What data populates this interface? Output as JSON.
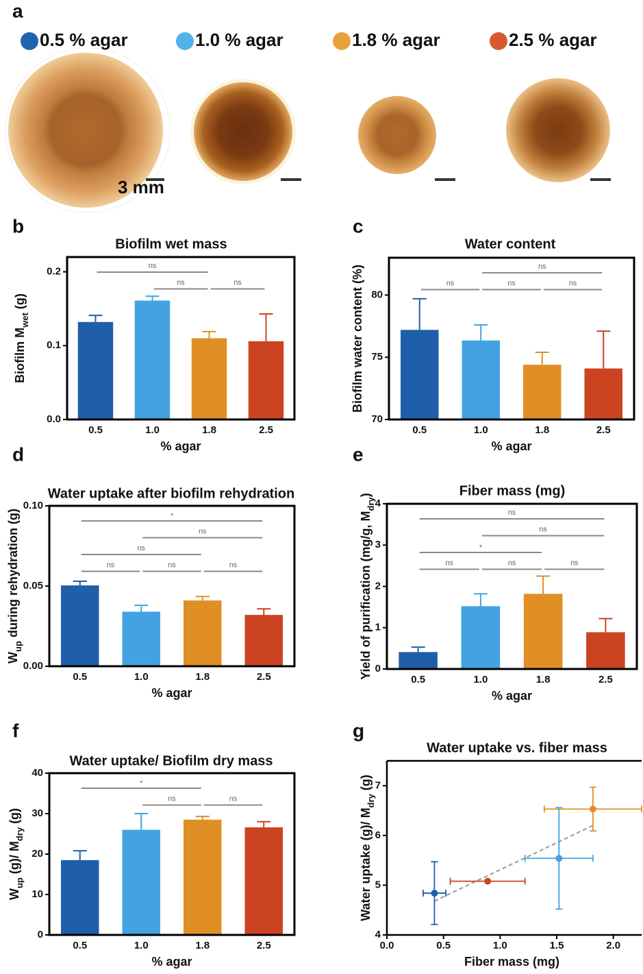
{
  "figure_a": {
    "panel": "a",
    "legend": [
      {
        "name": "0.5 % agar",
        "color": "#1f63b0"
      },
      {
        "name": "1.0 % agar",
        "color": "#52b3ea"
      },
      {
        "name": "1.8 % agar",
        "color": "#e9a23b"
      },
      {
        "name": "2.5 % agar",
        "color": "#d9592e"
      }
    ],
    "scale_label": "3 mm"
  },
  "chart_data": [
    {
      "panel": "b",
      "type": "bar",
      "title": "Biofilm wet mass",
      "xlabel": "% agar",
      "ylabel": [
        {
          "text": "Biofilm M"
        },
        {
          "text": "wet",
          "sub": true
        },
        {
          "text": " (g)"
        }
      ],
      "categories": [
        "0.5",
        "1.0",
        "1.8",
        "2.5"
      ],
      "values": [
        0.132,
        0.161,
        0.11,
        0.106
      ],
      "errors": [
        0.009,
        0.006,
        0.009,
        0.037
      ],
      "colors": [
        "#1f5ea8",
        "#42a3e0",
        "#e08f25",
        "#cc4322"
      ],
      "ylim": [
        0,
        0.22
      ],
      "yticks": [
        {
          "value": 0,
          "label": "0.0"
        },
        0.1,
        0.2
      ],
      "annotations": [
        {
          "text": "ns",
          "from": "1.0",
          "to": "1.8"
        },
        {
          "text": "ns",
          "from": "1.8",
          "to": "2.5"
        },
        {
          "text": "ns",
          "from": "0.5",
          "to": "1.8"
        }
      ]
    },
    {
      "panel": "c",
      "type": "bar",
      "title": "Water content",
      "xlabel": "% agar",
      "ylabel": [
        {
          "text": "Biofilm water content (%)"
        }
      ],
      "categories": [
        "0.5",
        "1.0",
        "1.8",
        "2.5"
      ],
      "values": [
        77.2,
        76.35,
        74.4,
        74.1
      ],
      "errors": [
        2.5,
        1.25,
        1.0,
        3.0
      ],
      "colors": [
        "#1f5ea8",
        "#42a3e0",
        "#e08f25",
        "#cc4322"
      ],
      "ylim": [
        70,
        83
      ],
      "yticks": [
        70,
        75,
        80
      ],
      "annotations": [
        {
          "text": "ns",
          "from": "0.5",
          "to": "1.0"
        },
        {
          "text": "ns",
          "from": "1.0",
          "to": "1.8"
        },
        {
          "text": "ns",
          "from": "1.8",
          "to": "2.5"
        },
        {
          "text": "ns",
          "from": "1.0",
          "to": "2.5"
        }
      ]
    },
    {
      "panel": "d",
      "type": "bar",
      "title": "Water uptake after biofilm rehydration",
      "xlabel": "% agar",
      "ylabel": [
        {
          "text": "W"
        },
        {
          "text": "up",
          "sub": true
        },
        {
          "text": " during rehydration (g)"
        }
      ],
      "categories": [
        "0.5",
        "1.0",
        "1.8",
        "2.5"
      ],
      "values": [
        0.0504,
        0.034,
        0.041,
        0.032
      ],
      "errors": [
        0.0026,
        0.004,
        0.0025,
        0.0038
      ],
      "colors": [
        "#1f5ea8",
        "#42a3e0",
        "#e08f25",
        "#cc4322"
      ],
      "ylim": [
        0,
        0.1
      ],
      "yticks": [
        {
          "value": 0,
          "label": "0.00"
        },
        0.05,
        {
          "value": 0.1,
          "label": "0.10"
        }
      ],
      "annotations": [
        {
          "text": "ns",
          "from": "0.5",
          "to": "1.0"
        },
        {
          "text": "ns",
          "from": "1.0",
          "to": "1.8"
        },
        {
          "text": "ns",
          "from": "1.8",
          "to": "2.5"
        },
        {
          "text": "ns",
          "from": "0.5",
          "to": "1.8"
        },
        {
          "text": "ns",
          "from": "1.0",
          "to": "2.5"
        },
        {
          "text": "*",
          "from": "0.5",
          "to": "2.5"
        }
      ]
    },
    {
      "panel": "e",
      "type": "bar",
      "title": "Fiber mass (mg)",
      "xlabel": "% agar",
      "ylabel": [
        {
          "text": "Yield of purification (mg/g, M"
        },
        {
          "text": "dry",
          "sub": true
        },
        {
          "text": ")"
        }
      ],
      "categories": [
        "0.5",
        "1.0",
        "1.8",
        "2.5"
      ],
      "values": [
        0.41,
        1.52,
        1.82,
        0.89
      ],
      "errors": [
        0.12,
        0.3,
        0.43,
        0.33
      ],
      "colors": [
        "#1f5ea8",
        "#42a3e0",
        "#e08f25",
        "#cc4322"
      ],
      "ylim": [
        0,
        4
      ],
      "yticks": [
        0,
        1,
        2,
        3,
        4
      ],
      "annotations": [
        {
          "text": "ns",
          "from": "0.5",
          "to": "1.0"
        },
        {
          "text": "ns",
          "from": "1.0",
          "to": "1.8"
        },
        {
          "text": "ns",
          "from": "1.8",
          "to": "2.5"
        },
        {
          "text": "*",
          "from": "0.5",
          "to": "1.8"
        },
        {
          "text": "ns",
          "from": "1.0",
          "to": "2.5"
        },
        {
          "text": "ns",
          "from": "0.5",
          "to": "2.5"
        }
      ]
    },
    {
      "panel": "f",
      "type": "bar",
      "title": "Water uptake/ Biofilm dry mass",
      "xlabel": "% agar",
      "ylabel": [
        {
          "text": "W"
        },
        {
          "text": "up",
          "sub": true
        },
        {
          "text": " (g)/ M"
        },
        {
          "text": "dry",
          "sub": true
        },
        {
          "text": " (g)"
        }
      ],
      "categories": [
        "0.5",
        "1.0",
        "1.8",
        "2.5"
      ],
      "values": [
        18.5,
        26.0,
        28.5,
        26.6
      ],
      "errors": [
        2.3,
        4.0,
        0.8,
        1.4
      ],
      "colors": [
        "#1f5ea8",
        "#42a3e0",
        "#e08f25",
        "#cc4322"
      ],
      "ylim": [
        0,
        40
      ],
      "yticks": [
        0,
        10,
        20,
        30,
        40
      ],
      "annotations": [
        {
          "text": "ns",
          "from": "1.0",
          "to": "1.8"
        },
        {
          "text": "ns",
          "from": "1.8",
          "to": "2.5"
        },
        {
          "text": "*",
          "from": "0.5",
          "to": "1.8"
        }
      ]
    },
    {
      "panel": "g",
      "type": "scatter",
      "title": "Water uptake vs. fiber mass",
      "xlabel": "Fiber mass (mg)",
      "ylabel": [
        {
          "text": "Water uptake (g)/ M"
        },
        {
          "text": "dry",
          "sub": true
        },
        {
          "text": " (g)"
        }
      ],
      "x": [
        0.42,
        1.52,
        1.82,
        0.89
      ],
      "values": [
        4.84,
        5.54,
        6.53,
        5.08
      ],
      "xerr": [
        0.1,
        0.3,
        0.43,
        0.33
      ],
      "yerr": [
        0.63,
        1.02,
        0.44,
        null
      ],
      "colors": [
        "#1f5ea8",
        "#42a3e0",
        "#e08f25",
        "#cc4322"
      ],
      "trendline": {
        "x": [
          0.42,
          1.82
        ],
        "y": [
          4.68,
          6.2
        ]
      },
      "xlim": [
        0,
        2.25
      ],
      "xticks": [
        {
          "value": 0,
          "label": "0.0"
        },
        0.5,
        {
          "value": 1,
          "label": "1.0"
        },
        1.5,
        {
          "value": 2,
          "label": "2.0"
        }
      ],
      "ylim": [
        4,
        7.5
      ],
      "yticks": [
        4,
        5,
        6,
        7
      ]
    }
  ]
}
